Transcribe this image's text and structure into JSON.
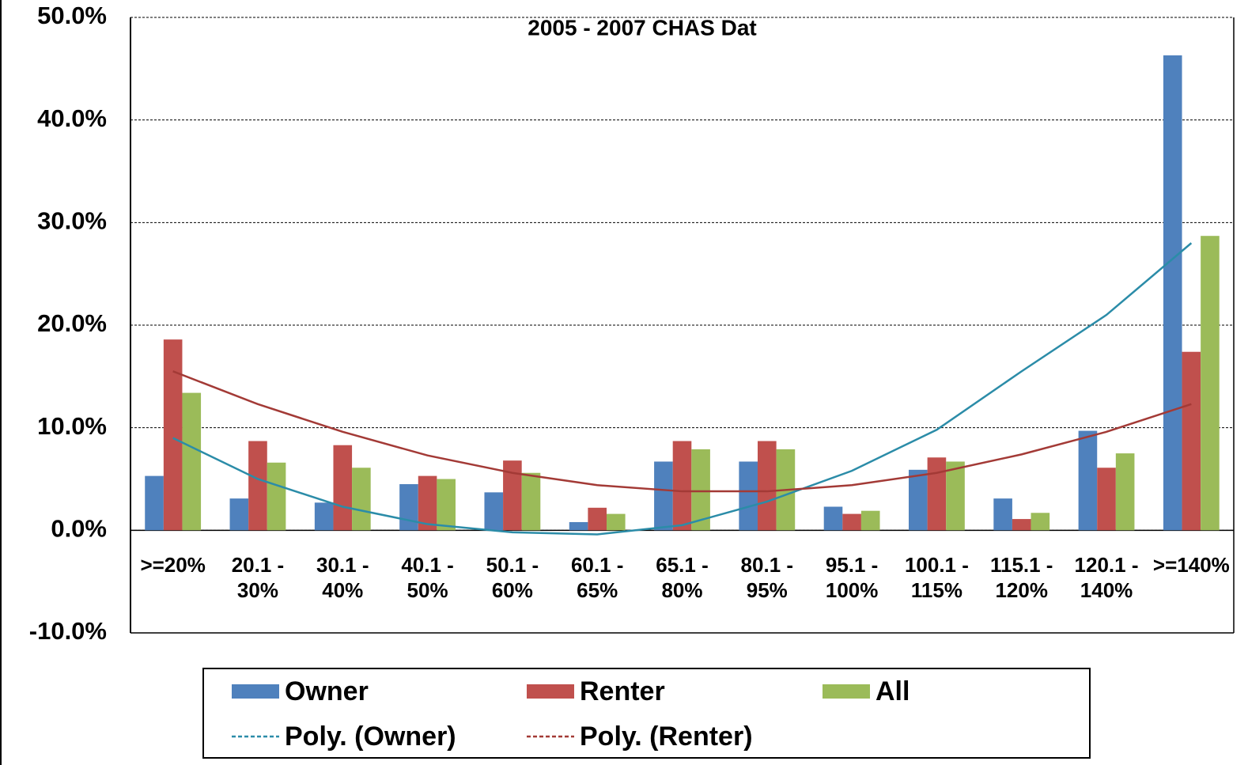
{
  "chart_data": {
    "type": "bar",
    "title": "2005 - 2007 CHAS Dat",
    "categories": [
      ">=20%",
      "20.1 -\n30%",
      "30.1 -\n40%",
      "40.1 -\n50%",
      "50.1 -\n60%",
      "60.1 -\n65%",
      "65.1 -\n80%",
      "80.1 -\n95%",
      "95.1 -\n100%",
      "100.1 -\n115%",
      "115.1 -\n120%",
      "120.1 -\n140%",
      ">=140%"
    ],
    "series": [
      {
        "name": "Owner",
        "color": "#4f81bd",
        "values": [
          5.3,
          3.1,
          2.7,
          4.5,
          3.7,
          0.8,
          6.7,
          6.7,
          2.3,
          5.9,
          3.1,
          9.7,
          46.3
        ]
      },
      {
        "name": "Renter",
        "color": "#c0504d",
        "values": [
          18.6,
          8.7,
          8.3,
          5.3,
          6.8,
          2.2,
          8.7,
          8.7,
          1.6,
          7.1,
          1.1,
          6.1,
          17.4
        ]
      },
      {
        "name": "All",
        "color": "#9bbb59",
        "values": [
          13.4,
          6.6,
          6.1,
          5.0,
          5.6,
          1.6,
          7.9,
          7.9,
          1.9,
          6.7,
          1.7,
          7.5,
          28.7
        ]
      },
      {
        "name": "Poly. (Owner)",
        "type": "line",
        "color": "#2b8ca8",
        "values": [
          9.0,
          5.0,
          2.3,
          0.6,
          -0.2,
          -0.4,
          0.5,
          2.8,
          5.8,
          9.8,
          15.5,
          21.0,
          28.0
        ]
      },
      {
        "name": "Poly. (Renter)",
        "type": "line",
        "color": "#a33a36",
        "values": [
          15.5,
          12.3,
          9.6,
          7.3,
          5.6,
          4.4,
          3.8,
          3.8,
          4.4,
          5.6,
          7.4,
          9.6,
          12.3
        ]
      }
    ],
    "ylim": [
      -10,
      50
    ],
    "yticks": [
      {
        "value": -10,
        "label": "-10.0%"
      },
      {
        "value": 0,
        "label": "0.0%"
      },
      {
        "value": 10,
        "label": "10.0%"
      },
      {
        "value": 20,
        "label": "20.0%"
      },
      {
        "value": 30,
        "label": "30.0%"
      },
      {
        "value": 40,
        "label": "40.0%"
      },
      {
        "value": 50,
        "label": "50.0%"
      }
    ],
    "grid": true,
    "legend": "bottom"
  }
}
